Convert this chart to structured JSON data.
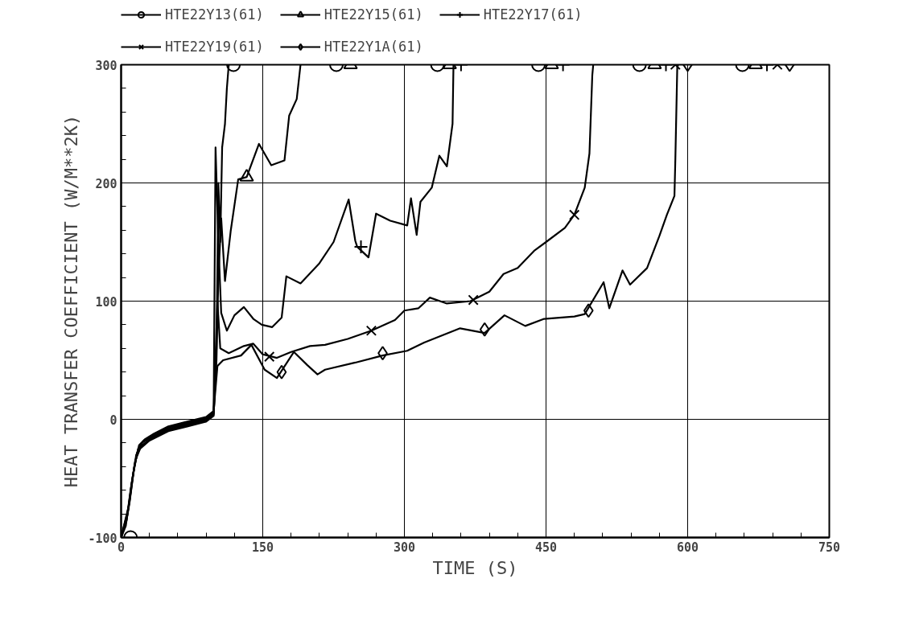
{
  "chart_data": {
    "type": "line",
    "xlabel": "TIME (S)",
    "ylabel": "HEAT TRANSFER COEFFICIENT (W/M**2K)",
    "xlim": [
      0,
      750
    ],
    "ylim": [
      -100,
      300
    ],
    "xticks": [
      0,
      150,
      300,
      450,
      600,
      750
    ],
    "yticks": [
      -100,
      0,
      100,
      200,
      300
    ],
    "grid": true,
    "legend": "top",
    "line_style": "solid",
    "series": [
      {
        "name": "HTE22Y13(61)",
        "color": "#000000",
        "x": [
          0,
          5,
          10,
          15,
          20,
          30,
          50,
          70,
          90,
          98,
          101,
          103,
          105,
          107,
          110,
          112,
          114
        ],
        "values": [
          -100,
          -90,
          -60,
          -35,
          -25,
          -18,
          -10,
          -6,
          -2,
          3,
          60,
          200,
          150,
          230,
          250,
          280,
          300
        ]
      },
      {
        "name": "HTE22Y15(61)",
        "color": "#000000",
        "x": [
          0,
          6,
          11,
          16,
          22,
          32,
          50,
          70,
          90,
          98,
          101,
          103,
          106,
          110,
          116,
          124,
          133,
          146,
          159,
          173,
          178,
          186,
          190
        ],
        "values": [
          -100,
          -85,
          -55,
          -30,
          -22,
          -16,
          -9,
          -5,
          -1,
          4,
          50,
          120,
          170,
          117,
          159,
          203,
          205,
          233,
          215,
          219,
          257,
          271,
          300
        ]
      },
      {
        "name": "HTE22Y17(61)",
        "color": "#000000",
        "x": [
          0,
          7,
          12,
          17,
          22,
          32,
          50,
          70,
          90,
          98,
          100,
          103,
          106,
          112,
          120,
          130,
          140,
          149,
          160,
          170,
          175,
          190,
          210,
          225,
          241,
          248,
          250,
          262,
          270,
          285,
          303,
          307,
          313,
          317,
          329,
          337,
          345,
          351,
          352
        ],
        "values": [
          -100,
          -80,
          -50,
          -28,
          -20,
          -15,
          -8,
          -4,
          0,
          5,
          230,
          150,
          90,
          75,
          88,
          95,
          85,
          80,
          78,
          86,
          121,
          115,
          132,
          150,
          186,
          151,
          146,
          137,
          174,
          168,
          164,
          187,
          156,
          184,
          196,
          223,
          214,
          250,
          300
        ]
      },
      {
        "name": "HTE22Y19(61)",
        "color": "#000000",
        "x": [
          0,
          8,
          13,
          18,
          24,
          34,
          50,
          70,
          90,
          98,
          102,
          105,
          114,
          130,
          140,
          150,
          165,
          180,
          200,
          216,
          240,
          265,
          290,
          300,
          315,
          327,
          345,
          370,
          390,
          405,
          420,
          438,
          450,
          470,
          480,
          491,
          496,
          499,
          500
        ],
        "values": [
          -100,
          -75,
          -45,
          -25,
          -18,
          -13,
          -7,
          -3,
          1,
          6,
          100,
          60,
          56,
          62,
          64,
          55,
          52,
          57,
          62,
          63,
          68,
          75,
          84,
          92,
          94,
          103,
          98,
          100,
          108,
          123,
          128,
          143,
          150,
          162,
          173,
          196,
          225,
          291,
          300
        ]
      },
      {
        "name": "HTE22Y1A(61)",
        "color": "#000000",
        "x": [
          0,
          9,
          14,
          19,
          25,
          35,
          50,
          70,
          90,
          98,
          102,
          108,
          127,
          138,
          152,
          165,
          183,
          197,
          208,
          216,
          248,
          277,
          303,
          321,
          359,
          385,
          406,
          428,
          448,
          480,
          491,
          511,
          517,
          531,
          539,
          557,
          570,
          578,
          586,
          587,
          589,
          590
        ],
        "values": [
          -100,
          -70,
          -40,
          -22,
          -17,
          -12,
          -6,
          -2,
          2,
          7,
          45,
          50,
          54,
          63,
          42,
          35,
          57,
          46,
          38,
          42,
          48,
          54,
          58,
          65,
          77,
          73,
          88,
          79,
          85,
          87,
          89,
          116,
          94,
          126,
          114,
          128,
          155,
          173,
          189,
          221,
          298,
          300
        ]
      },
      {
        "type": "scatter",
        "color": "#000000",
        "marker": "circle",
        "x": [
          10,
          119,
          228,
          335,
          442,
          549,
          658
        ],
        "values": [
          -100,
          300,
          300,
          300,
          300,
          300,
          300
        ]
      },
      {
        "type": "scatter",
        "color": "#000000",
        "marker": "triangle",
        "x": [
          133,
          243,
          348,
          456,
          565,
          672
        ],
        "values": [
          205,
          300,
          300,
          300,
          300,
          300
        ]
      },
      {
        "type": "scatter",
        "color": "#000000",
        "marker": "cross",
        "x": [
          254,
          360,
          468,
          577,
          684
        ],
        "values": [
          146,
          300,
          300,
          300,
          300
        ]
      },
      {
        "type": "scatter",
        "color": "#000000",
        "marker": "x",
        "x": [
          157,
          265,
          373,
          480,
          587,
          695
        ],
        "values": [
          53,
          75,
          101,
          173,
          300,
          300
        ]
      },
      {
        "type": "scatter",
        "color": "#000000",
        "marker": "diamond",
        "x": [
          170,
          277,
          385,
          495,
          600,
          708
        ],
        "values": [
          40,
          56,
          76,
          92,
          300,
          300
        ]
      }
    ]
  }
}
